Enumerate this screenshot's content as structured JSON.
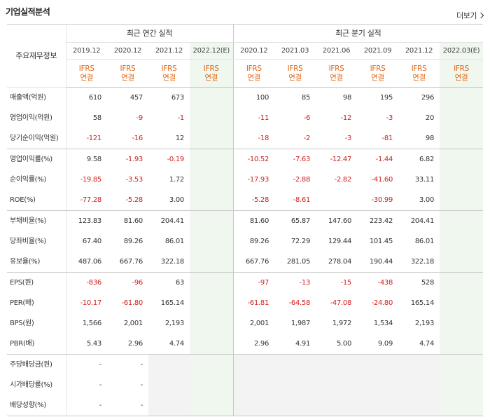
{
  "header": {
    "title": "기업실적분석",
    "more_label": "더보기"
  },
  "table": {
    "row_header_label": "주요재무정보",
    "group_annual": "최근 연간 실적",
    "group_quarter": "최근 분기 실적",
    "periods": [
      "2019.12",
      "2020.12",
      "2021.12",
      "2022.12(E)",
      "2020.12",
      "2021.03",
      "2021.06",
      "2021.09",
      "2021.12",
      "2022.03(E)"
    ],
    "basis_line1": "IFRS",
    "basis_line2": "연결",
    "rows": [
      {
        "label": "매출액(억원)",
        "values": [
          "610",
          "457",
          "673",
          "",
          "100",
          "85",
          "98",
          "195",
          "296",
          ""
        ]
      },
      {
        "label": "영업이익(억원)",
        "values": [
          "58",
          "-9",
          "-1",
          "",
          "-11",
          "-6",
          "-12",
          "-3",
          "20",
          ""
        ]
      },
      {
        "label": "당기순이익(억원)",
        "values": [
          "-121",
          "-16",
          "12",
          "",
          "-18",
          "-2",
          "-3",
          "-81",
          "98",
          ""
        ]
      },
      {
        "label": "영업이익률(%)",
        "values": [
          "9.58",
          "-1.93",
          "-0.19",
          "",
          "-10.52",
          "-7.63",
          "-12.47",
          "-1.44",
          "6.82",
          ""
        ]
      },
      {
        "label": "순이익률(%)",
        "values": [
          "-19.85",
          "-3.53",
          "1.72",
          "",
          "-17.93",
          "-2.88",
          "-2.82",
          "-41.60",
          "33.11",
          ""
        ]
      },
      {
        "label": "ROE(%)",
        "values": [
          "-77.28",
          "-5.28",
          "3.00",
          "",
          "-5.28",
          "-8.61",
          "",
          "-30.99",
          "3.00",
          ""
        ]
      },
      {
        "label": "부채비율(%)",
        "values": [
          "123.83",
          "81.60",
          "204.41",
          "",
          "81.60",
          "65.87",
          "147.60",
          "223.42",
          "204.41",
          ""
        ]
      },
      {
        "label": "당좌비율(%)",
        "values": [
          "67.40",
          "89.26",
          "86.01",
          "",
          "89.26",
          "72.29",
          "129.44",
          "101.45",
          "86.01",
          ""
        ]
      },
      {
        "label": "유보율(%)",
        "values": [
          "487.06",
          "667.76",
          "322.18",
          "",
          "667.76",
          "281.05",
          "278.04",
          "190.44",
          "322.18",
          ""
        ]
      },
      {
        "label": "EPS(원)",
        "values": [
          "-836",
          "-96",
          "63",
          "",
          "-97",
          "-13",
          "-15",
          "-438",
          "528",
          ""
        ]
      },
      {
        "label": "PER(배)",
        "values": [
          "-10.17",
          "-61.80",
          "165.14",
          "",
          "-61.81",
          "-64.58",
          "-47.08",
          "-24.80",
          "165.14",
          ""
        ]
      },
      {
        "label": "BPS(원)",
        "values": [
          "1,566",
          "2,001",
          "2,193",
          "",
          "2,001",
          "1,987",
          "1,972",
          "1,534",
          "2,193",
          ""
        ]
      },
      {
        "label": "PBR(배)",
        "values": [
          "5.43",
          "2.96",
          "4.74",
          "",
          "2.96",
          "4.91",
          "5.00",
          "9.09",
          "4.74",
          ""
        ]
      },
      {
        "label": "주당배당금(원)",
        "values": [
          "-",
          "-",
          "",
          "",
          "",
          "",
          "",
          "",
          "",
          ""
        ]
      },
      {
        "label": "시가배당률(%)",
        "values": [
          "-",
          "-",
          "",
          "",
          "",
          "",
          "",
          "",
          "",
          ""
        ]
      },
      {
        "label": "배당성향(%)",
        "values": [
          "-",
          "-",
          "",
          "",
          "",
          "",
          "",
          "",
          "",
          ""
        ]
      }
    ]
  },
  "colors": {
    "negative": "#d21e1e",
    "basis": "#e06a1a",
    "estimate_bg": "#eff7ef"
  }
}
